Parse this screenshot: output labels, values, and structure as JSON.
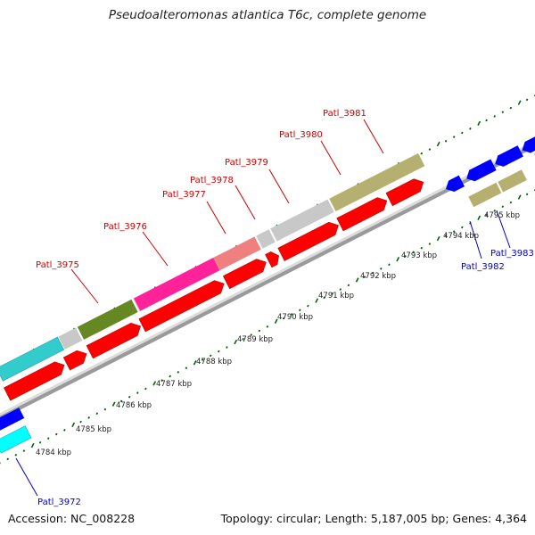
{
  "title": "Pseudoalteromonas atlantica T6c, complete genome",
  "accession": "Accession: NC_008228",
  "summary": "Topology: circular; Length: 5,187,005 bp; Genes: 4,364",
  "colors": {
    "label_red": "#cc0000",
    "label_blue": "#0000cc",
    "cds_red": "#ff0000",
    "tick_green": "#006600",
    "cyan": "#33cccc",
    "grey": "#c8c8c8",
    "olive": "#668822",
    "magenta": "#ff2299",
    "salmon": "#f08080",
    "khaki": "#b5b070",
    "blue": "#0000ff"
  },
  "kbp_labels": [
    "4784 kbp",
    "4785 kbp",
    "4786 kbp",
    "4787 kbp",
    "4788 kbp",
    "4789 kbp",
    "4790 kbp",
    "4791 kbp",
    "4792 kbp",
    "4793 kbp",
    "4794 kbp",
    "4795 kbp"
  ],
  "gene_labels": [
    {
      "text": "Patl_3975",
      "strand": "plus"
    },
    {
      "text": "Patl_3976",
      "strand": "plus"
    },
    {
      "text": "Patl_3977",
      "strand": "plus"
    },
    {
      "text": "Patl_3978",
      "strand": "plus"
    },
    {
      "text": "Patl_3979",
      "strand": "plus"
    },
    {
      "text": "Patl_3980",
      "strand": "plus"
    },
    {
      "text": "Patl_3981",
      "strand": "plus"
    },
    {
      "text": "Patl_3982",
      "strand": "minus"
    },
    {
      "text": "Patl_3983",
      "strand": "minus"
    },
    {
      "text": "Patl_3972",
      "strand": "minus"
    }
  ]
}
